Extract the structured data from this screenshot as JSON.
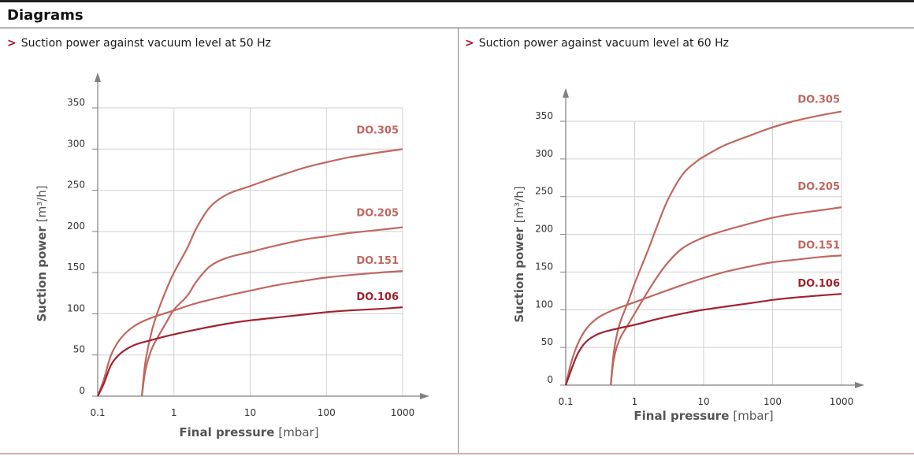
{
  "header": {
    "title": "Diagrams"
  },
  "colors": {
    "accent": "#b0102e",
    "curve_light": "#c0675f",
    "curve_dark": "#a3202d",
    "grid": "#d0d0d0",
    "axis": "#808080"
  },
  "chart_data": [
    {
      "type": "line",
      "title": "Suction power against vacuum level at 50 Hz",
      "xlabel": "Final pressure",
      "xlabel_unit": "[mbar]",
      "ylabel": "Suction power",
      "ylabel_unit": "[m³/h]",
      "xscale": "log",
      "xlim": [
        0.1,
        1000
      ],
      "ylim": [
        0,
        350
      ],
      "xticks": [
        0.1,
        1,
        10,
        100,
        1000
      ],
      "xtick_labels": [
        "0.1",
        "1",
        "10",
        "100",
        "1000"
      ],
      "yticks": [
        0,
        50,
        100,
        150,
        200,
        250,
        300,
        350
      ],
      "ytick_labels": [
        "0",
        "50",
        "100",
        "150",
        "200",
        "250",
        "300",
        "350"
      ],
      "grid": true,
      "series": [
        {
          "name": "DO.305",
          "color": "#c0675f",
          "x": [
            0.38,
            0.42,
            0.5,
            0.6,
            0.8,
            1,
            1.5,
            2,
            3,
            5,
            10,
            20,
            50,
            100,
            200,
            500,
            1000
          ],
          "y": [
            0,
            40,
            75,
            100,
            130,
            150,
            180,
            205,
            230,
            245,
            255,
            265,
            277,
            284,
            290,
            296,
            300
          ]
        },
        {
          "name": "DO.205",
          "color": "#c0675f",
          "x": [
            0.38,
            0.42,
            0.5,
            0.6,
            0.8,
            1,
            1.5,
            2,
            3,
            5,
            10,
            20,
            50,
            100,
            200,
            500,
            1000
          ],
          "y": [
            0,
            30,
            55,
            70,
            90,
            105,
            122,
            140,
            158,
            168,
            175,
            182,
            190,
            194,
            198,
            202,
            205
          ]
        },
        {
          "name": "DO.151",
          "color": "#c0675f",
          "x": [
            0.1,
            0.12,
            0.15,
            0.2,
            0.3,
            0.5,
            1,
            2,
            5,
            10,
            20,
            50,
            100,
            200,
            500,
            1000
          ],
          "y": [
            0,
            20,
            50,
            70,
            85,
            95,
            104,
            113,
            122,
            128,
            134,
            140,
            144,
            147,
            150,
            152
          ]
        },
        {
          "name": "DO.106",
          "color": "#a3202d",
          "x": [
            0.1,
            0.12,
            0.15,
            0.2,
            0.3,
            0.5,
            1,
            2,
            5,
            10,
            20,
            50,
            100,
            200,
            500,
            1000
          ],
          "y": [
            0,
            15,
            38,
            52,
            62,
            68,
            75,
            81,
            88,
            92,
            95,
            99,
            102,
            104,
            106,
            108
          ]
        }
      ]
    },
    {
      "type": "line",
      "title": "Suction power against vacuum level at 60 Hz",
      "xlabel": "Final pressure",
      "xlabel_unit": "[mbar]",
      "ylabel": "Suction power",
      "ylabel_unit": "[m³/h]",
      "xscale": "log",
      "xlim": [
        0.1,
        1000
      ],
      "ylim": [
        0,
        350
      ],
      "xticks": [
        0.1,
        1,
        10,
        100,
        1000
      ],
      "xtick_labels": [
        "0.1",
        "1",
        "10",
        "100",
        "1000"
      ],
      "yticks": [
        0,
        50,
        100,
        150,
        200,
        250,
        300,
        350
      ],
      "ytick_labels": [
        "0",
        "50",
        "100",
        "150",
        "200",
        "250",
        "300",
        "350"
      ],
      "grid": true,
      "series": [
        {
          "name": "DO.305",
          "color": "#c0675f",
          "x": [
            0.45,
            0.5,
            0.6,
            0.8,
            1,
            1.5,
            2,
            3,
            5,
            8,
            10,
            20,
            50,
            100,
            200,
            500,
            1000
          ],
          "y": [
            0,
            45,
            80,
            110,
            135,
            175,
            205,
            245,
            280,
            297,
            303,
            318,
            332,
            342,
            350,
            358,
            363
          ]
        },
        {
          "name": "DO.205",
          "color": "#c0675f",
          "x": [
            0.45,
            0.5,
            0.6,
            0.8,
            1,
            1.5,
            2,
            3,
            5,
            10,
            20,
            50,
            100,
            200,
            500,
            1000
          ],
          "y": [
            0,
            35,
            60,
            80,
            95,
            122,
            140,
            162,
            182,
            196,
            205,
            215,
            222,
            227,
            232,
            236
          ]
        },
        {
          "name": "DO.151",
          "color": "#c0675f",
          "x": [
            0.1,
            0.12,
            0.15,
            0.2,
            0.3,
            0.5,
            1,
            2,
            5,
            10,
            20,
            50,
            100,
            200,
            500,
            1000
          ],
          "y": [
            0,
            30,
            55,
            75,
            90,
            100,
            110,
            120,
            133,
            142,
            150,
            158,
            163,
            166,
            170,
            172
          ]
        },
        {
          "name": "DO.106",
          "color": "#a3202d",
          "x": [
            0.1,
            0.12,
            0.15,
            0.2,
            0.3,
            0.5,
            1,
            2,
            5,
            10,
            20,
            50,
            100,
            200,
            500,
            1000
          ],
          "y": [
            0,
            20,
            42,
            58,
            68,
            74,
            80,
            87,
            95,
            100,
            104,
            109,
            113,
            116,
            119,
            121
          ]
        }
      ]
    }
  ]
}
